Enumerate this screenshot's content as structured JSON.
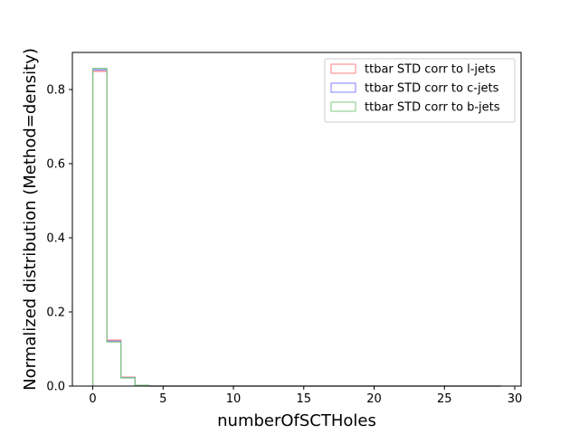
{
  "chart_data": {
    "type": "histogram-step",
    "title": "",
    "xlabel": "numberOfSCTHoles",
    "ylabel": "Normalized distribution (Method=density)",
    "xlim": [
      -1.45,
      30.45
    ],
    "ylim": [
      0,
      0.9
    ],
    "xticks": [
      0,
      5,
      10,
      15,
      20,
      25,
      30
    ],
    "yticks": [
      0.0,
      0.2,
      0.4,
      0.6,
      0.8
    ],
    "ytick_labels": [
      "0.0",
      "0.2",
      "0.4",
      "0.6",
      "0.8"
    ],
    "bin_edges": [
      0,
      1,
      2,
      3,
      4,
      5,
      6,
      7,
      8,
      9,
      10,
      11,
      12,
      13,
      14,
      15,
      16,
      17,
      18,
      19,
      20,
      21,
      22,
      23,
      24,
      25,
      26,
      27,
      28,
      29
    ],
    "legend_position": "upper right",
    "series": [
      {
        "name": "ttbar STD corr to l-jets",
        "color": "#ff7f7f",
        "values": [
          0.849,
          0.124,
          0.024,
          0.002,
          0,
          0,
          0,
          0,
          0,
          0,
          0,
          0,
          0,
          0,
          0,
          0,
          0,
          0,
          0,
          0,
          0,
          0,
          0,
          0,
          0,
          0,
          0,
          0,
          0
        ]
      },
      {
        "name": "ttbar STD corr to c-jets",
        "color": "#7f7fff",
        "values": [
          0.853,
          0.121,
          0.023,
          0.002,
          0,
          0,
          0,
          0,
          0,
          0,
          0,
          0,
          0,
          0,
          0,
          0,
          0,
          0,
          0,
          0,
          0,
          0,
          0,
          0,
          0,
          0,
          0,
          0,
          0
        ]
      },
      {
        "name": "ttbar STD corr to b-jets",
        "color": "#7fc97f",
        "values": [
          0.857,
          0.119,
          0.022,
          0.002,
          0,
          0,
          0,
          0,
          0,
          0,
          0,
          0,
          0,
          0,
          0,
          0,
          0,
          0,
          0,
          0,
          0,
          0,
          0,
          0,
          0,
          0,
          0,
          0,
          0
        ]
      }
    ]
  }
}
